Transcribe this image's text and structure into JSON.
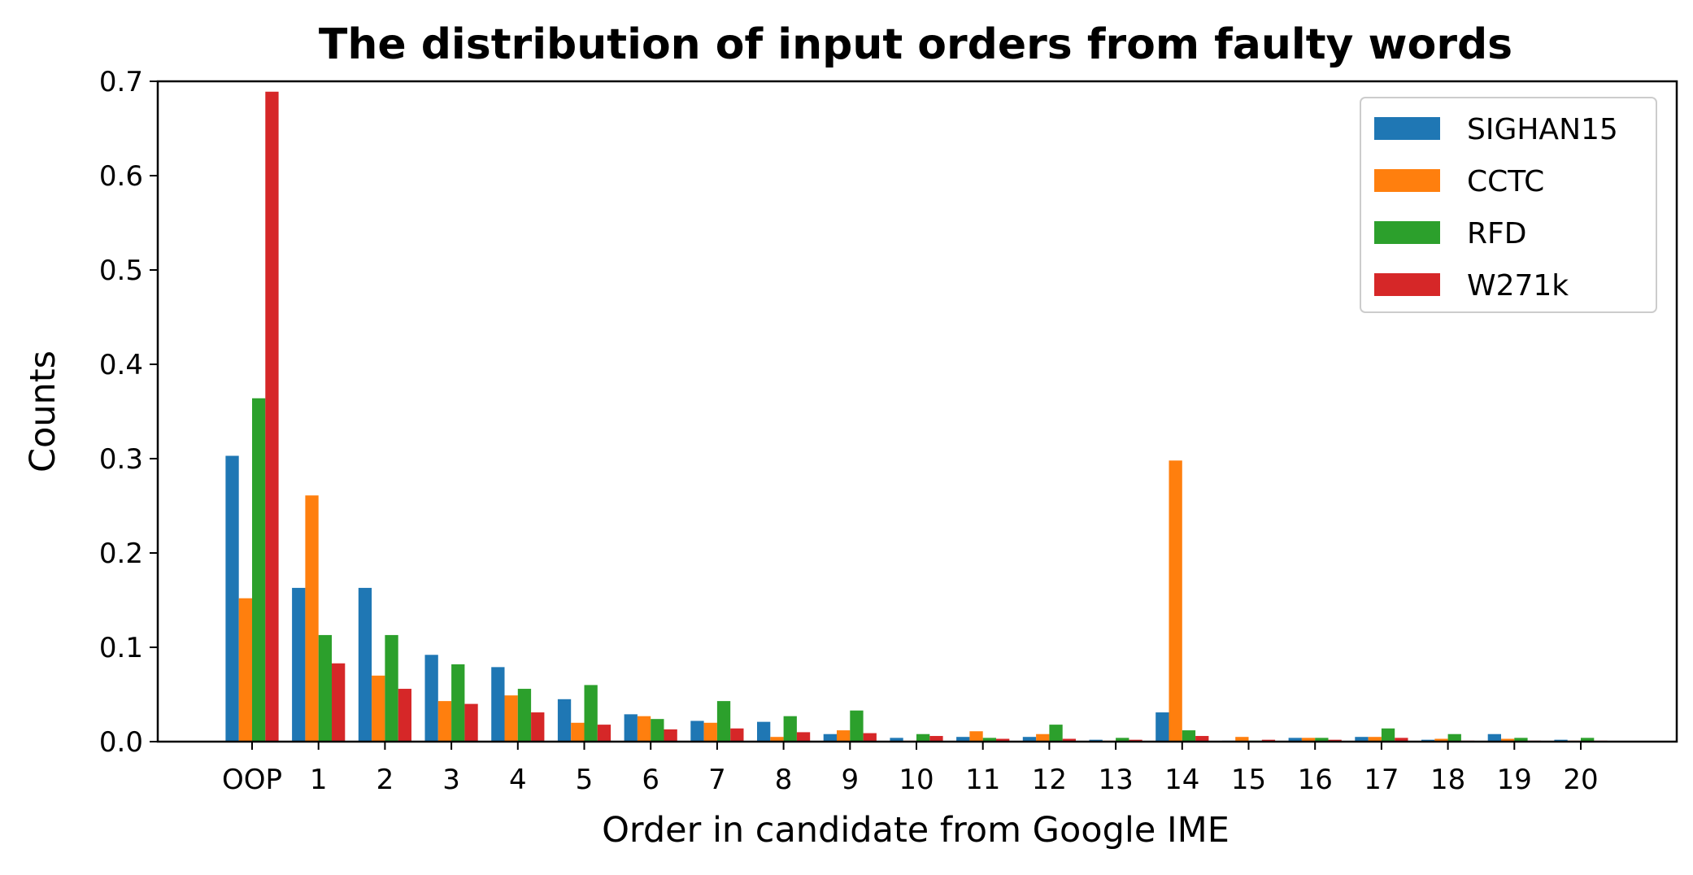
{
  "chart_data": {
    "type": "bar",
    "title": "The distribution of input orders from faulty words",
    "xlabel": "Order in candidate from Google IME",
    "ylabel": "Counts",
    "ylim": [
      0,
      0.7
    ],
    "yticks": [
      "0.0",
      "0.1",
      "0.2",
      "0.3",
      "0.4",
      "0.5",
      "0.6",
      "0.7"
    ],
    "categories": [
      "OOP",
      "1",
      "2",
      "3",
      "4",
      "5",
      "6",
      "7",
      "8",
      "9",
      "10",
      "11",
      "12",
      "13",
      "14",
      "15",
      "16",
      "17",
      "18",
      "19",
      "20"
    ],
    "legend_position": "top-right",
    "grid": false,
    "series": [
      {
        "name": "SIGHAN15",
        "color": "#1f77b4",
        "values": [
          0.303,
          0.163,
          0.163,
          0.092,
          0.079,
          0.045,
          0.029,
          0.022,
          0.021,
          0.008,
          0.004,
          0.005,
          0.005,
          0.002,
          0.031,
          0.001,
          0.004,
          0.005,
          0.002,
          0.008,
          0.002
        ]
      },
      {
        "name": "CCTC",
        "color": "#ff7f0e",
        "values": [
          0.152,
          0.261,
          0.07,
          0.043,
          0.049,
          0.02,
          0.027,
          0.02,
          0.005,
          0.012,
          0.001,
          0.011,
          0.008,
          0.001,
          0.298,
          0.005,
          0.004,
          0.005,
          0.003,
          0.003,
          0.001
        ]
      },
      {
        "name": "RFD",
        "color": "#2ca02c",
        "values": [
          0.364,
          0.113,
          0.113,
          0.082,
          0.056,
          0.06,
          0.024,
          0.043,
          0.027,
          0.033,
          0.008,
          0.004,
          0.018,
          0.004,
          0.012,
          0.001,
          0.004,
          0.014,
          0.008,
          0.004,
          0.004
        ]
      },
      {
        "name": "W271k",
        "color": "#d62728",
        "values": [
          0.689,
          0.083,
          0.056,
          0.04,
          0.031,
          0.018,
          0.013,
          0.014,
          0.01,
          0.009,
          0.006,
          0.003,
          0.003,
          0.002,
          0.006,
          0.002,
          0.002,
          0.004,
          0.001,
          0.001,
          0.001
        ]
      }
    ]
  }
}
